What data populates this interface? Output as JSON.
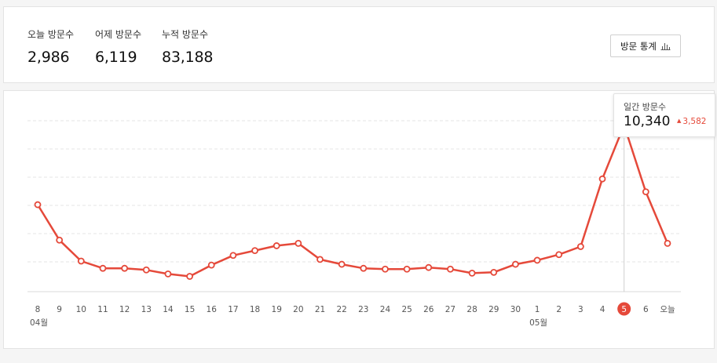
{
  "summary": {
    "today": {
      "label": "오늘 방문수",
      "value": "2,986"
    },
    "yesterday": {
      "label": "어제 방문수",
      "value": "6,119"
    },
    "total": {
      "label": "누적 방문수",
      "value": "83,188"
    },
    "stats_button_label": "방문 통계",
    "stats_button_icon": "bar-chart-icon"
  },
  "tooltip": {
    "label": "일간 방문수",
    "value": "10,340",
    "delta": "3,582",
    "delta_direction": "up"
  },
  "colors": {
    "line": "#e5493a",
    "grid": "#e6e6e6",
    "axis": "#d8d8d8",
    "tick_text": "#555555",
    "active_badge": "#e5493a"
  },
  "chart_data": {
    "type": "line",
    "categories": [
      "8",
      "9",
      "10",
      "11",
      "12",
      "13",
      "14",
      "15",
      "16",
      "17",
      "18",
      "19",
      "20",
      "21",
      "22",
      "23",
      "24",
      "25",
      "26",
      "27",
      "28",
      "29",
      "30",
      "1",
      "2",
      "3",
      "4",
      "5",
      "6",
      "오늘"
    ],
    "month_labels": [
      {
        "label": "04월",
        "category_index": 0
      },
      {
        "label": "05월",
        "category_index": 23
      }
    ],
    "series": [
      {
        "values": [
          5400,
          3200,
          1900,
          1450,
          1450,
          1350,
          1100,
          950,
          1650,
          2250,
          2550,
          2850,
          3000,
          2000,
          1700,
          1450,
          1400,
          1400,
          1500,
          1400,
          1150,
          1200,
          1700,
          1950,
          2300,
          2800,
          7000,
          10340,
          6200,
          3000
        ]
      }
    ],
    "highlight_index": 27,
    "ylim": [
      0,
      11000
    ],
    "grid": true,
    "y_tick_labels_shown": false
  }
}
